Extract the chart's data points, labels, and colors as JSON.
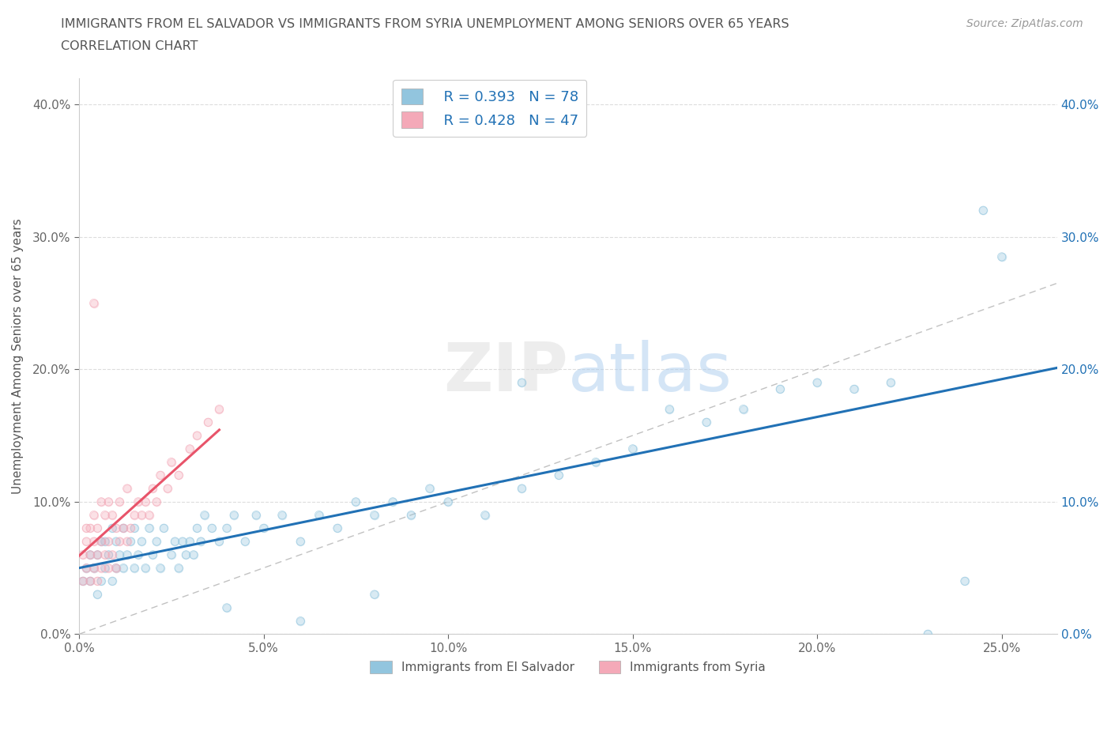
{
  "title_line1": "IMMIGRANTS FROM EL SALVADOR VS IMMIGRANTS FROM SYRIA UNEMPLOYMENT AMONG SENIORS OVER 65 YEARS",
  "title_line2": "CORRELATION CHART",
  "source": "Source: ZipAtlas.com",
  "ylabel": "Unemployment Among Seniors over 65 years",
  "legend_label_blue": "Immigrants from El Salvador",
  "legend_label_pink": "Immigrants from Syria",
  "R_blue": "R = 0.393",
  "N_blue": "N = 78",
  "R_pink": "R = 0.428",
  "N_pink": "N = 47",
  "blue_color": "#92C5DE",
  "pink_color": "#F4A9B8",
  "trendline_blue_color": "#2171B5",
  "trendline_pink_color": "#E8546A",
  "diagonal_color": "#BBBBBB",
  "watermark_color": "#CCCCCC",
  "background_color": "#FFFFFF",
  "title_color": "#555555",
  "source_color": "#999999",
  "xlim": [
    0.0,
    0.265
  ],
  "ylim": [
    0.0,
    0.42
  ],
  "x_ticks": [
    0.0,
    0.05,
    0.1,
    0.15,
    0.2,
    0.25
  ],
  "x_tick_labels": [
    "0.0%",
    "5.0%",
    "10.0%",
    "15.0%",
    "20.0%",
    "25.0%"
  ],
  "y_ticks": [
    0.0,
    0.1,
    0.2,
    0.3,
    0.4
  ],
  "y_tick_labels": [
    "0.0%",
    "10.0%",
    "20.0%",
    "30.0%",
    "40.0%"
  ],
  "blue_x": [
    0.001,
    0.002,
    0.003,
    0.003,
    0.004,
    0.005,
    0.005,
    0.006,
    0.006,
    0.007,
    0.007,
    0.008,
    0.009,
    0.009,
    0.01,
    0.01,
    0.011,
    0.012,
    0.012,
    0.013,
    0.014,
    0.015,
    0.015,
    0.016,
    0.017,
    0.018,
    0.019,
    0.02,
    0.021,
    0.022,
    0.023,
    0.025,
    0.026,
    0.027,
    0.028,
    0.029,
    0.03,
    0.031,
    0.032,
    0.033,
    0.034,
    0.036,
    0.038,
    0.04,
    0.042,
    0.045,
    0.048,
    0.05,
    0.055,
    0.06,
    0.065,
    0.07,
    0.075,
    0.08,
    0.085,
    0.09,
    0.095,
    0.1,
    0.11,
    0.12,
    0.13,
    0.14,
    0.15,
    0.16,
    0.17,
    0.18,
    0.19,
    0.2,
    0.21,
    0.22,
    0.23,
    0.24,
    0.245,
    0.25,
    0.08,
    0.06,
    0.04,
    0.12
  ],
  "blue_y": [
    0.04,
    0.05,
    0.04,
    0.06,
    0.05,
    0.03,
    0.06,
    0.04,
    0.07,
    0.05,
    0.07,
    0.06,
    0.04,
    0.08,
    0.05,
    0.07,
    0.06,
    0.05,
    0.08,
    0.06,
    0.07,
    0.05,
    0.08,
    0.06,
    0.07,
    0.05,
    0.08,
    0.06,
    0.07,
    0.05,
    0.08,
    0.06,
    0.07,
    0.05,
    0.07,
    0.06,
    0.07,
    0.06,
    0.08,
    0.07,
    0.09,
    0.08,
    0.07,
    0.08,
    0.09,
    0.07,
    0.09,
    0.08,
    0.09,
    0.07,
    0.09,
    0.08,
    0.1,
    0.09,
    0.1,
    0.09,
    0.11,
    0.1,
    0.09,
    0.11,
    0.12,
    0.13,
    0.14,
    0.17,
    0.16,
    0.17,
    0.185,
    0.19,
    0.185,
    0.19,
    0.0,
    0.04,
    0.32,
    0.285,
    0.03,
    0.01,
    0.02,
    0.19
  ],
  "pink_x": [
    0.001,
    0.001,
    0.002,
    0.002,
    0.002,
    0.003,
    0.003,
    0.003,
    0.004,
    0.004,
    0.004,
    0.005,
    0.005,
    0.005,
    0.006,
    0.006,
    0.006,
    0.007,
    0.007,
    0.008,
    0.008,
    0.008,
    0.009,
    0.009,
    0.01,
    0.01,
    0.011,
    0.011,
    0.012,
    0.013,
    0.013,
    0.014,
    0.015,
    0.016,
    0.017,
    0.018,
    0.019,
    0.02,
    0.021,
    0.022,
    0.024,
    0.025,
    0.027,
    0.03,
    0.032,
    0.035,
    0.038
  ],
  "pink_y": [
    0.04,
    0.06,
    0.05,
    0.07,
    0.08,
    0.04,
    0.06,
    0.08,
    0.05,
    0.07,
    0.09,
    0.04,
    0.06,
    0.08,
    0.05,
    0.07,
    0.1,
    0.06,
    0.09,
    0.05,
    0.07,
    0.1,
    0.06,
    0.09,
    0.05,
    0.08,
    0.07,
    0.1,
    0.08,
    0.07,
    0.11,
    0.08,
    0.09,
    0.1,
    0.09,
    0.1,
    0.09,
    0.11,
    0.1,
    0.12,
    0.11,
    0.13,
    0.12,
    0.14,
    0.15,
    0.16,
    0.17
  ],
  "pink_outlier_x": [
    0.004
  ],
  "pink_outlier_y": [
    0.25
  ]
}
